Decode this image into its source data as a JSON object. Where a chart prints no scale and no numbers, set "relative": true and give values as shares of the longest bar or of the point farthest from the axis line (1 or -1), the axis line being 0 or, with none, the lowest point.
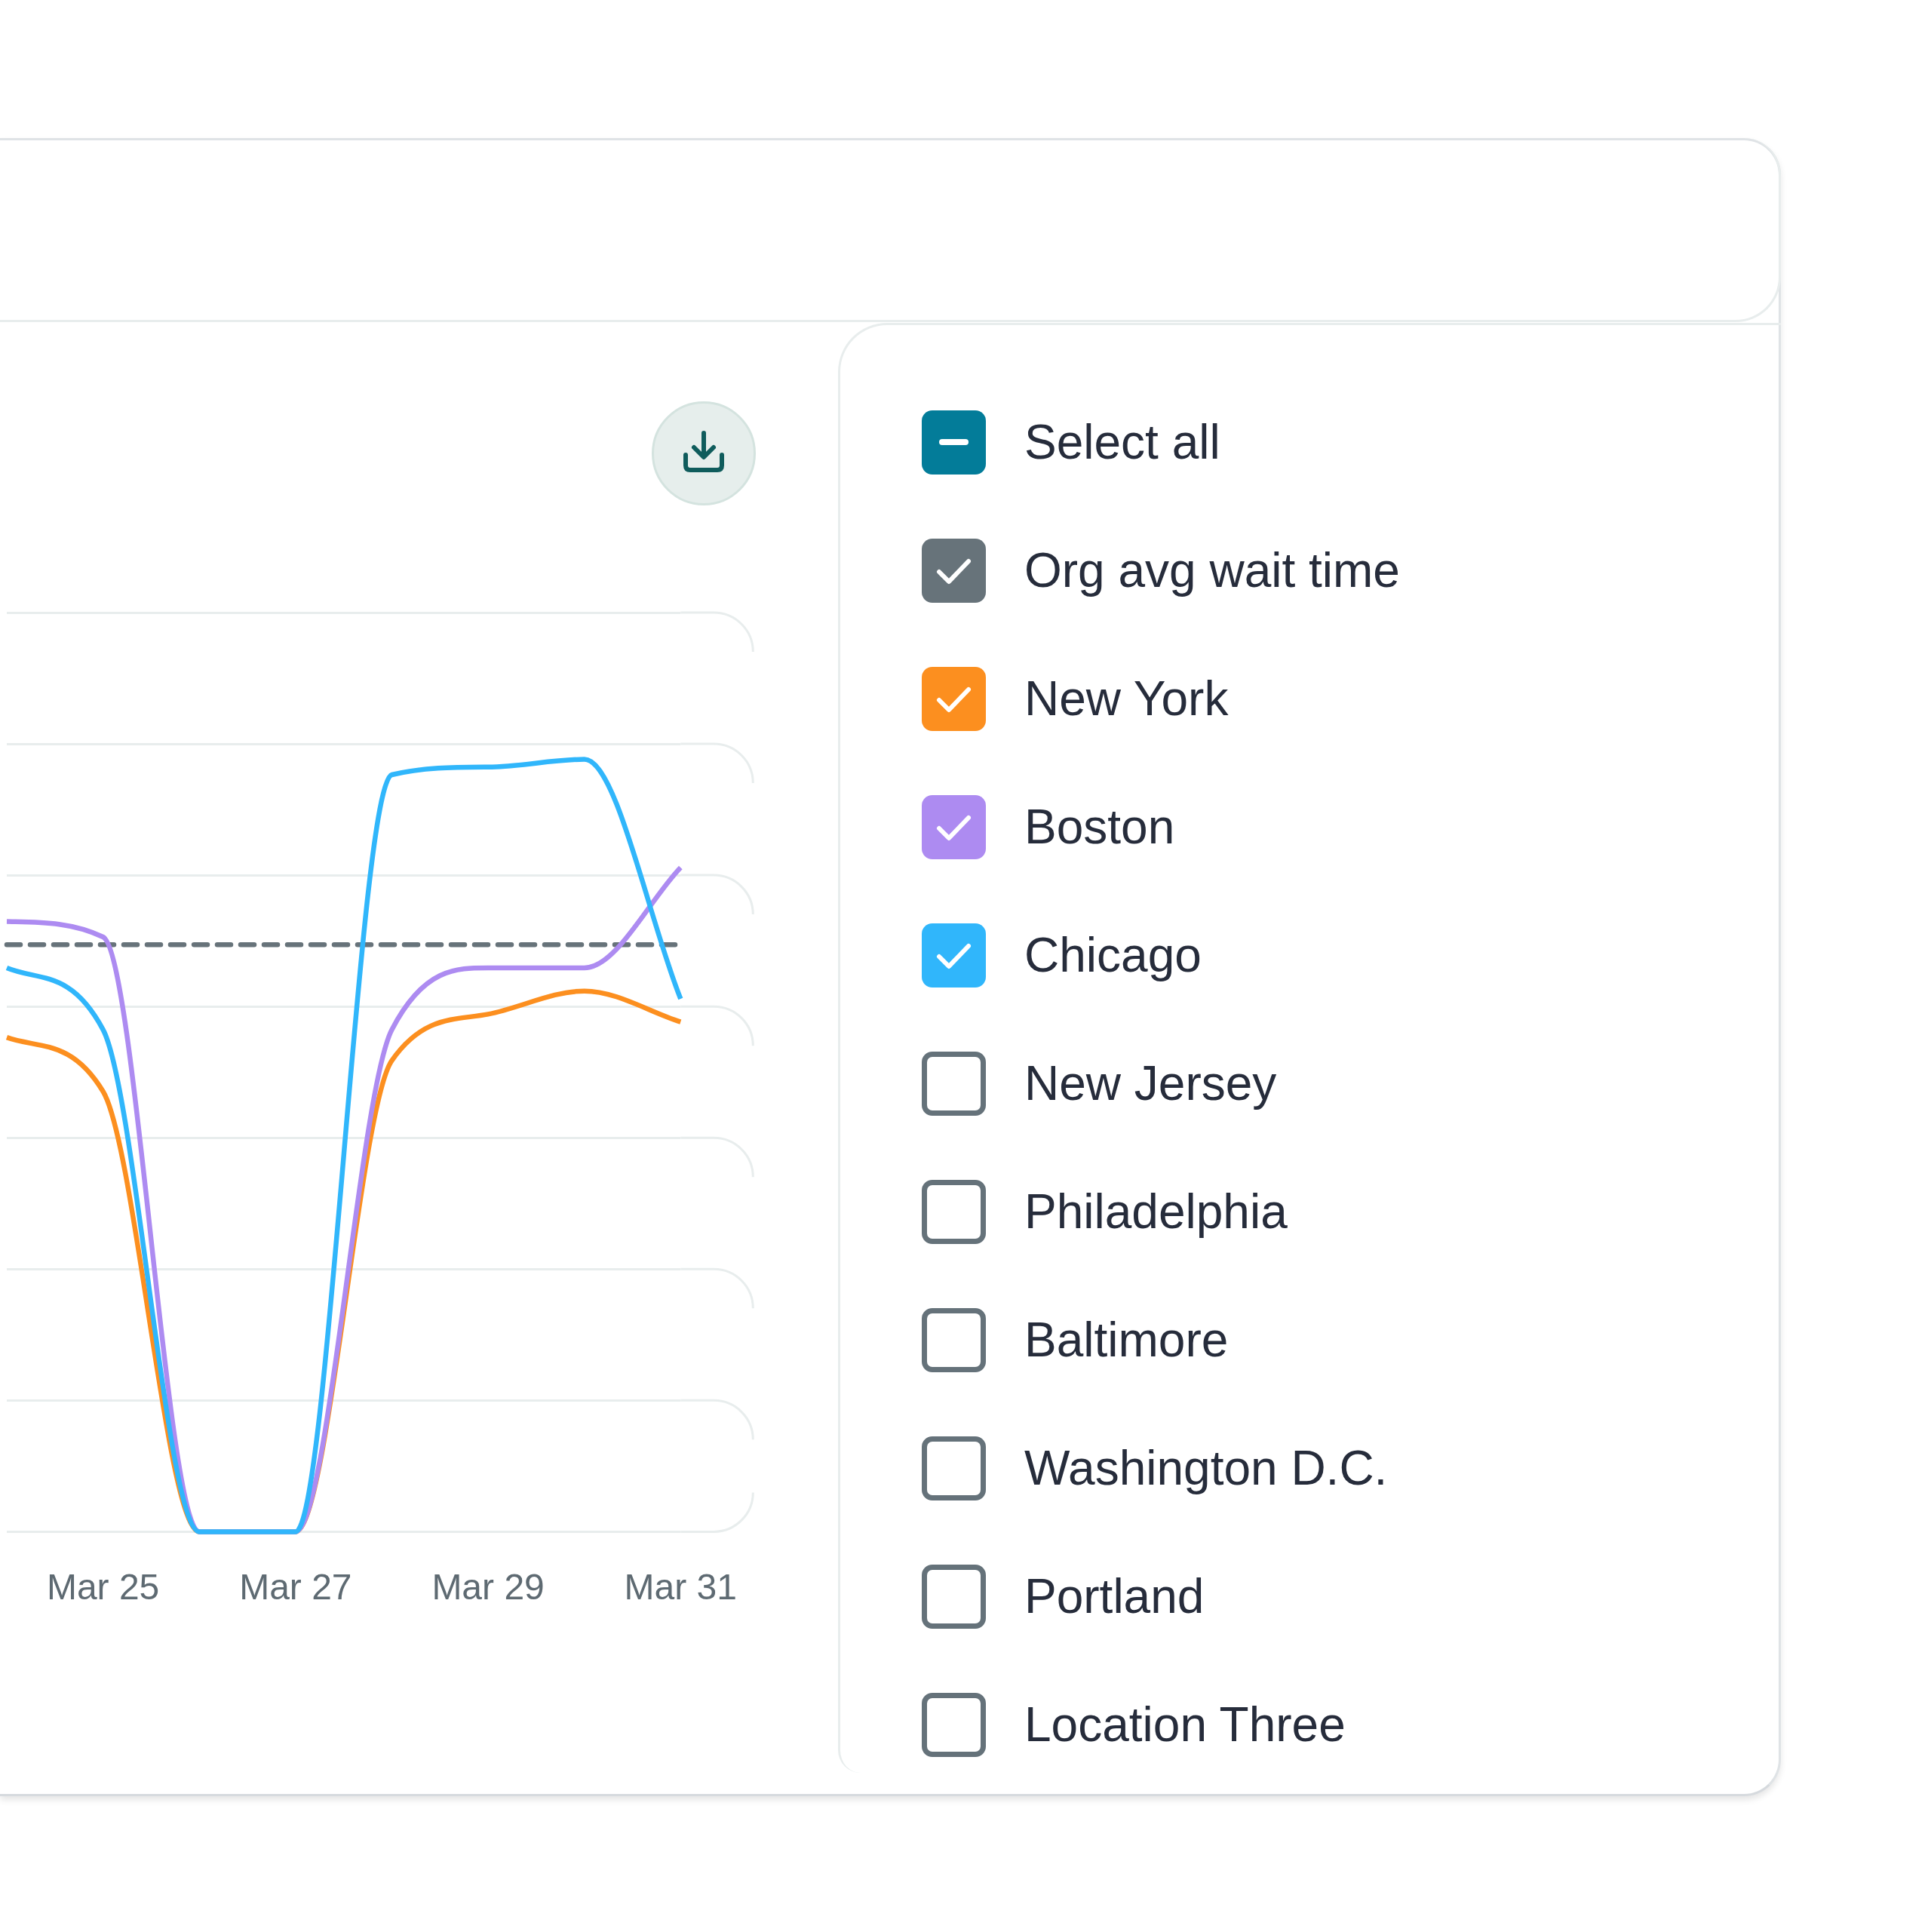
{
  "chart_data": {
    "type": "line",
    "relative": true,
    "categories": [
      null,
      "Mar 25",
      null,
      "Mar 27",
      null,
      "Mar 29",
      null,
      "Mar 31"
    ],
    "legend_title": "Select all",
    "series": [
      {
        "name": "Org avg wait time",
        "color": "#67737a",
        "line_style": "dashed",
        "values": [
          0.76,
          0.76,
          0.76,
          0.76,
          0.76,
          0.76,
          0.76,
          0.76
        ]
      },
      {
        "name": "New York",
        "color": "#fc8f1f",
        "values": [
          0.64,
          0.57,
          0,
          0,
          0.61,
          0.67,
          0.7,
          0.66
        ]
      },
      {
        "name": "Boston",
        "color": "#ad8bf1",
        "values": [
          0.79,
          0.77,
          0,
          0,
          0.65,
          0.73,
          0.73,
          0.86
        ]
      },
      {
        "name": "Chicago",
        "color": "#30b6fb",
        "values": [
          0.73,
          0.65,
          0,
          0,
          0.98,
          0.99,
          1,
          0.69
        ]
      },
      {
        "name": "New Jersey",
        "color": "#65727a",
        "values": [
          null,
          null,
          null,
          null,
          null,
          null,
          null,
          null
        ]
      },
      {
        "name": "Philadelphia",
        "color": "#65727a",
        "values": [
          null,
          null,
          null,
          null,
          null,
          null,
          null,
          null
        ]
      },
      {
        "name": "Baltimore",
        "color": "#65727a",
        "values": [
          null,
          null,
          null,
          null,
          null,
          null,
          null,
          null
        ]
      },
      {
        "name": "Washington D.C.",
        "color": "#65727a",
        "values": [
          null,
          null,
          null,
          null,
          null,
          null,
          null,
          null
        ]
      },
      {
        "name": "Portland",
        "color": "#65727a",
        "values": [
          null,
          null,
          null,
          null,
          null,
          null,
          null,
          null
        ]
      },
      {
        "name": "Location Three",
        "color": "#65727a",
        "values": [
          null,
          null,
          null,
          null,
          null,
          null,
          null,
          null
        ]
      }
    ],
    "grid": "y",
    "legend": "right",
    "marker": "none"
  }
}
